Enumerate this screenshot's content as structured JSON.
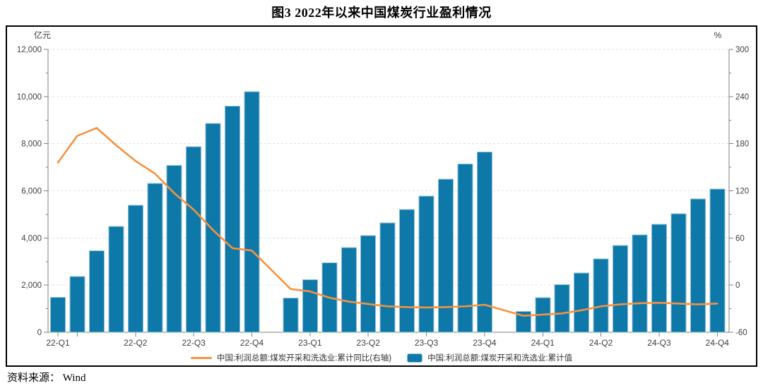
{
  "title": "图3  2022年以来中国煤炭行业盈利情况",
  "source_note": "资料来源： Wind",
  "legend": {
    "line_label": "中国:利润总额:煤炭开采和洗选业:累计同比(右轴)",
    "bar_label": "中国:利润总额:煤炭开采和洗选业:累计值"
  },
  "colors": {
    "bar": "#0E78A8",
    "bar_edge": "#8FBFD9",
    "line": "#F79240",
    "grid": "#E0E0E0",
    "axis": "#7F7F7F",
    "tick_label": "#404040"
  },
  "chart_data": {
    "type": "bar",
    "subtype": "bar+line combo, monthly cumulative values with quarterly x labels",
    "title": "图3  2022年以来中国煤炭行业盈利情况",
    "left_axis": {
      "unit": "亿元",
      "min": 0,
      "max": 12000,
      "ticks": [
        {
          "value": 0,
          "label": "0"
        },
        {
          "value": 2000,
          "label": "2,000"
        },
        {
          "value": 4000,
          "label": "4,000"
        },
        {
          "value": 6000,
          "label": "6,000"
        },
        {
          "value": 8000,
          "label": "8,000"
        },
        {
          "value": 10000,
          "label": "10,000"
        },
        {
          "value": 12000,
          "label": "12,000"
        }
      ]
    },
    "right_axis": {
      "unit": "%",
      "min": -60,
      "max": 300,
      "ticks": [
        {
          "value": -60,
          "label": "-60"
        },
        {
          "value": 0,
          "label": "0"
        },
        {
          "value": 60,
          "label": "60"
        },
        {
          "value": 120,
          "label": "120"
        },
        {
          "value": 180,
          "label": "180"
        },
        {
          "value": 240,
          "label": "240"
        },
        {
          "value": 300,
          "label": "300"
        }
      ]
    },
    "grid": "horizontal dashed gridlines on",
    "legend_position": "bottom center",
    "x": [
      "2022-02",
      "2022-03",
      "2022-04",
      "2022-05",
      "2022-06",
      "2022-07",
      "2022-08",
      "2022-09",
      "2022-10",
      "2022-11",
      "2022-12",
      "2023-02",
      "2023-03",
      "2023-04",
      "2023-05",
      "2023-06",
      "2023-07",
      "2023-08",
      "2023-09",
      "2023-10",
      "2023-11",
      "2023-12",
      "2024-02",
      "2024-03",
      "2024-04",
      "2024-05",
      "2024-06",
      "2024-07",
      "2024-08",
      "2024-09",
      "2024-10",
      "2024-11",
      "2024-12"
    ],
    "x_quarter_ticks": [
      {
        "label": "22-Q1",
        "month": "2022-02"
      },
      {
        "label": "22-Q2",
        "month": "2022-06"
      },
      {
        "label": "22-Q3",
        "month": "2022-09"
      },
      {
        "label": "22-Q4",
        "month": "2022-12"
      },
      {
        "label": "23-Q1",
        "month": "2023-03"
      },
      {
        "label": "23-Q2",
        "month": "2023-06"
      },
      {
        "label": "23-Q3",
        "month": "2023-09"
      },
      {
        "label": "23-Q4",
        "month": "2023-12"
      },
      {
        "label": "24-Q1",
        "month": "2024-03"
      },
      {
        "label": "24-Q2",
        "month": "2024-06"
      },
      {
        "label": "24-Q3",
        "month": "2024-09"
      },
      {
        "label": "24-Q4",
        "month": "2024-12"
      }
    ],
    "extra_unlabeled_tick_months": [
      "2022-03"
    ],
    "series": [
      {
        "name": "中国:利润总额:煤炭开采和洗选业:累计值",
        "type": "bar",
        "axis": "left",
        "color": "#0E78A8",
        "values": [
          1480,
          2360,
          3450,
          4490,
          5380,
          6310,
          7080,
          7870,
          8860,
          9590,
          10200,
          1450,
          2230,
          2950,
          3590,
          4100,
          4640,
          5210,
          5780,
          6500,
          7130,
          7640,
          880,
          1460,
          2020,
          2520,
          3110,
          3680,
          4130,
          4580,
          5030,
          5660,
          6080
        ]
      },
      {
        "name": "中国:利润总额:煤炭开采和洗选业:累计同比(右轴)",
        "type": "line",
        "axis": "right",
        "color": "#F79240",
        "values": [
          156,
          190,
          200,
          178,
          158,
          142,
          117,
          96,
          70,
          47,
          44,
          -5,
          -8,
          -16,
          -21,
          -24,
          -27,
          -28,
          -28.5,
          -28,
          -27,
          -25,
          -39,
          -37.5,
          -36,
          -32,
          -27,
          -24.5,
          -23,
          -22.5,
          -23.5,
          -24.5,
          -23.5
        ]
      }
    ]
  }
}
